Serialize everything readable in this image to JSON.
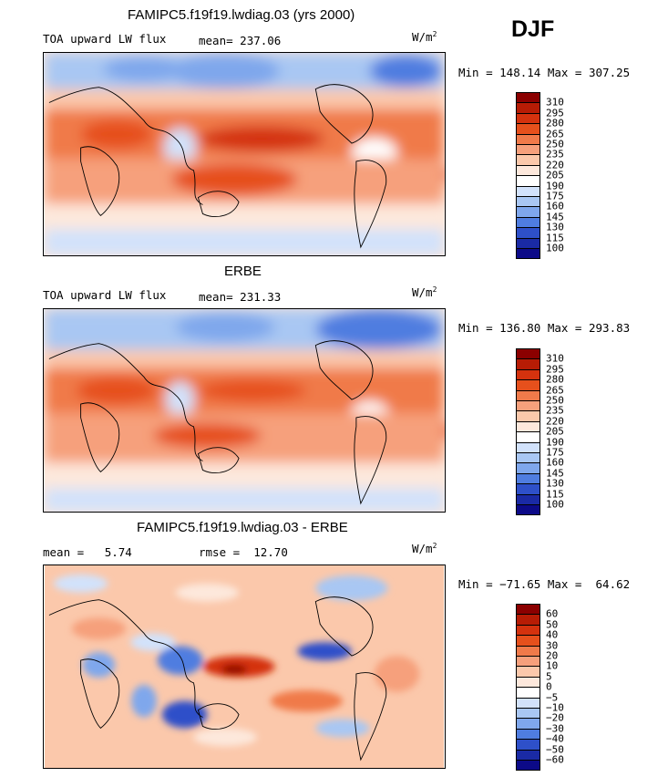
{
  "season": "DJF",
  "panels": [
    {
      "title": "FAMIPC5.f19f19.lwdiag.03 (yrs 2000)",
      "left_label": "TOA upward LW flux",
      "stat_label": "mean=",
      "stat_value": "237.06",
      "units_base": "W/m",
      "units_exp": "2",
      "minmax": "Min = 148.14 Max = 307.25",
      "palette": "abs"
    },
    {
      "title": "ERBE",
      "left_label": "TOA upward LW flux",
      "stat_label": "mean=",
      "stat_value": "231.33",
      "units_base": "W/m",
      "units_exp": "2",
      "minmax": "Min = 136.80 Max = 293.83",
      "palette": "abs"
    },
    {
      "title": "FAMIPC5.f19f19.lwdiag.03 - ERBE",
      "left_label": "mean =   5.74",
      "stat_label": "rmse =",
      "stat_value": "12.70",
      "units_base": "W/m",
      "units_exp": "2",
      "minmax": "Min = −71.65 Max =  64.62",
      "palette": "diff"
    }
  ],
  "colorbars": {
    "abs": {
      "levels": [
        "310",
        "295",
        "280",
        "265",
        "250",
        "235",
        "220",
        "205",
        "190",
        "175",
        "160",
        "145",
        "130",
        "115",
        "100"
      ],
      "colors": [
        "#8b0000",
        "#b71c05",
        "#d4320e",
        "#e6501c",
        "#f07a4a",
        "#f6a07c",
        "#fbc8ab",
        "#fde8dc",
        "#ffffff",
        "#d2e2fb",
        "#a9c7f3",
        "#7fa7ec",
        "#4f7de0",
        "#2e50c9",
        "#1a2aa5",
        "#0c0a88"
      ]
    },
    "diff": {
      "levels": [
        "60",
        "50",
        "40",
        "30",
        "20",
        "10",
        "5",
        "0",
        "−5",
        "−10",
        "−20",
        "−30",
        "−40",
        "−50",
        "−60"
      ],
      "colors": [
        "#8b0000",
        "#b71c05",
        "#d4320e",
        "#e6501c",
        "#f07a4a",
        "#f6a07c",
        "#fbc8ab",
        "#fde8dc",
        "#ffffff",
        "#d2e2fb",
        "#a9c7f3",
        "#7fa7ec",
        "#4f7de0",
        "#2e50c9",
        "#1a2aa5",
        "#0c0a88"
      ]
    }
  },
  "chart_data": [
    {
      "type": "heatmap",
      "title": "FAMIPC5.f19f19.lwdiag.03 (yrs 2000)",
      "variable": "TOA upward LW flux",
      "units": "W/m2",
      "season": "DJF",
      "mean": 237.06,
      "min": 148.14,
      "max": 307.25,
      "contour_levels": [
        100,
        115,
        130,
        145,
        160,
        175,
        190,
        205,
        220,
        235,
        250,
        265,
        280,
        295,
        310
      ]
    },
    {
      "type": "heatmap",
      "title": "ERBE",
      "variable": "TOA upward LW flux",
      "units": "W/m2",
      "season": "DJF",
      "mean": 231.33,
      "min": 136.8,
      "max": 293.83,
      "contour_levels": [
        100,
        115,
        130,
        145,
        160,
        175,
        190,
        205,
        220,
        235,
        250,
        265,
        280,
        295,
        310
      ]
    },
    {
      "type": "heatmap",
      "title": "FAMIPC5.f19f19.lwdiag.03 - ERBE",
      "units": "W/m2",
      "season": "DJF",
      "mean": 5.74,
      "rmse": 12.7,
      "min": -71.65,
      "max": 64.62,
      "contour_levels": [
        -60,
        -50,
        -40,
        -30,
        -20,
        -10,
        -5,
        0,
        5,
        10,
        20,
        30,
        40,
        50,
        60
      ]
    }
  ]
}
